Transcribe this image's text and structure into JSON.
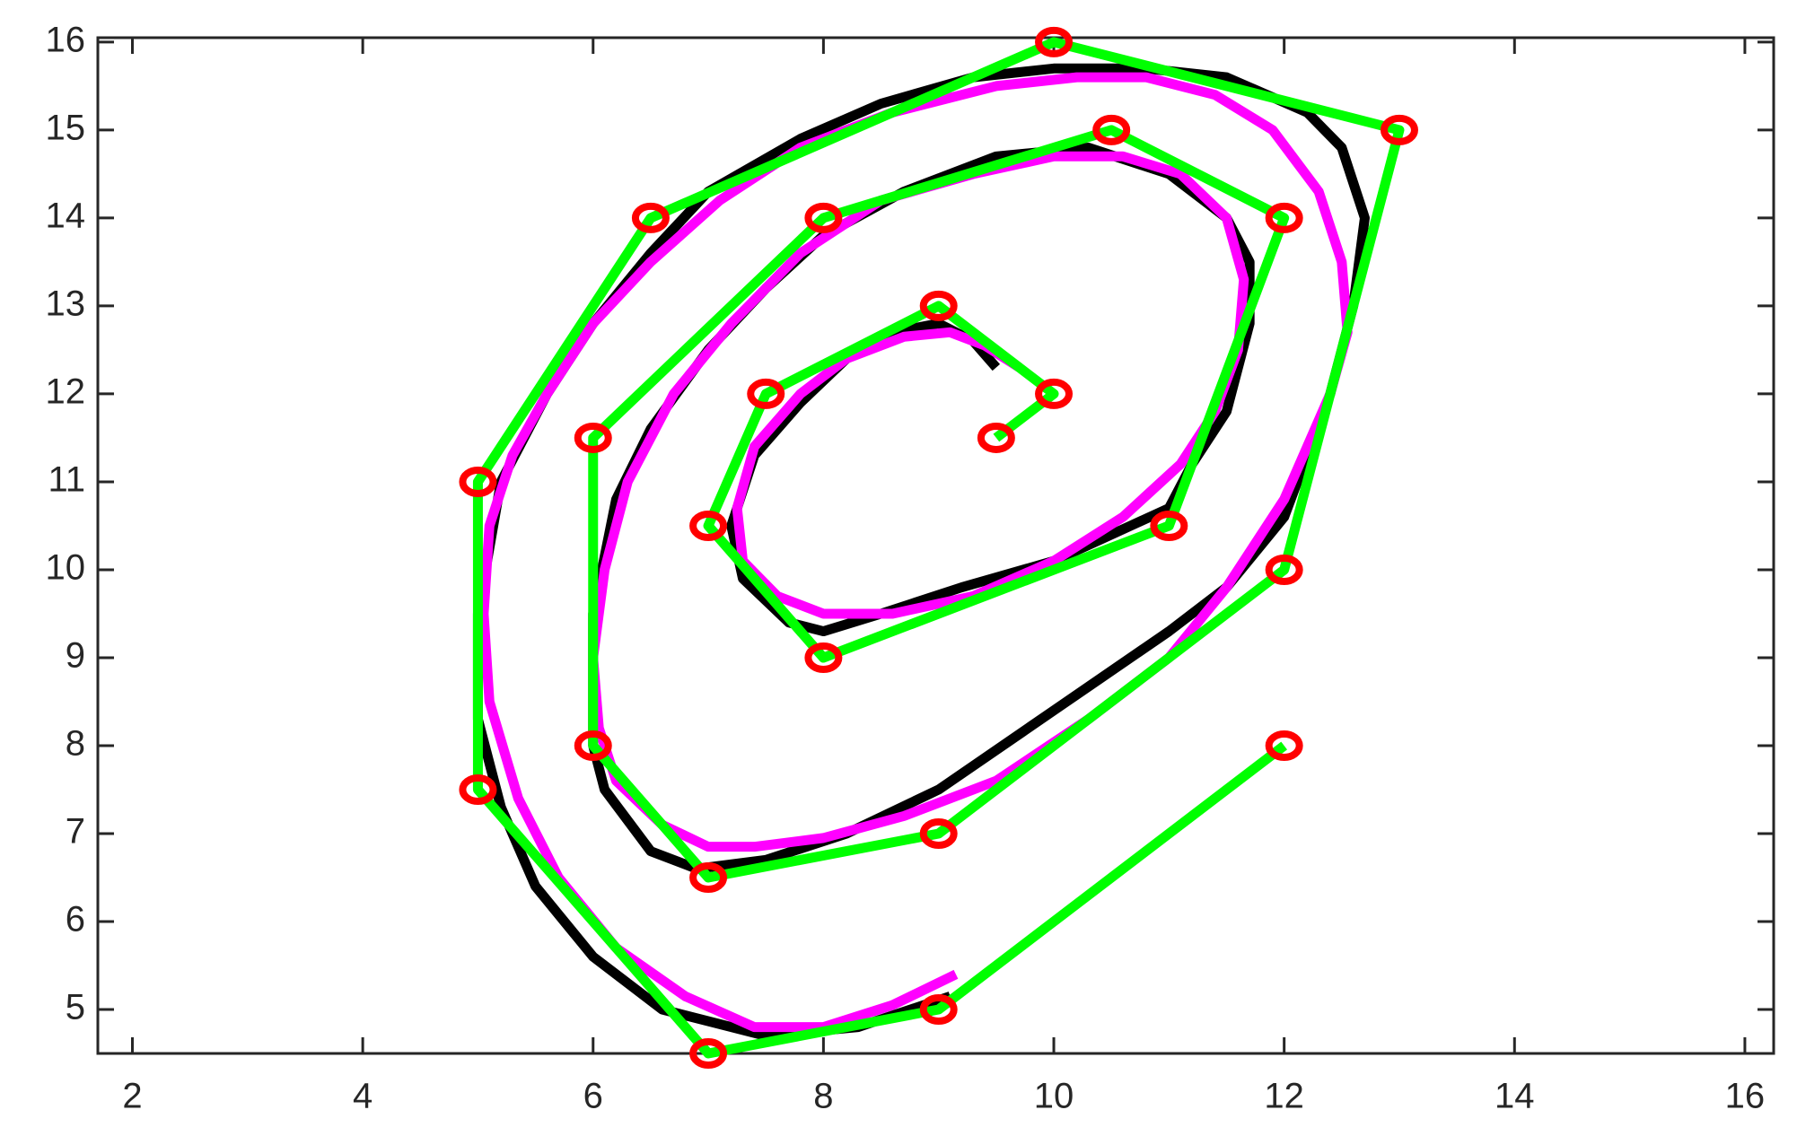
{
  "chart_data": {
    "type": "line",
    "xlim": [
      1.7,
      16.25
    ],
    "ylim": [
      4.5,
      16.05
    ],
    "xticks": [
      2,
      4,
      6,
      8,
      10,
      12,
      14,
      16
    ],
    "yticks": [
      5,
      6,
      7,
      8,
      9,
      10,
      11,
      12,
      13,
      14,
      15,
      16
    ],
    "grid": false,
    "series": [
      {
        "color": "#000000",
        "line_width": 11,
        "x": [
          9.1,
          8.3,
          7.5,
          6.6,
          6.0,
          5.5,
          5.2,
          5.0,
          5.0,
          5.2,
          5.6,
          6.0,
          6.5,
          7.0,
          7.8,
          8.5,
          9.3,
          10.0,
          10.8,
          11.5,
          12.2,
          12.5,
          12.7,
          12.6,
          12.4,
          12.0,
          11.5,
          11.0,
          10.0,
          9.0,
          8.2,
          7.5,
          6.9,
          6.5,
          6.1,
          6.0,
          6.0,
          6.2,
          6.5,
          7.0,
          7.5,
          8.0,
          8.7,
          9.5,
          10.3,
          11.0,
          11.5,
          11.7,
          11.7,
          11.5,
          11.2,
          11.0,
          10.5,
          10.0,
          9.2,
          8.5,
          8.0,
          7.7,
          7.3,
          7.2,
          7.4,
          7.8,
          8.2,
          8.6,
          9.0,
          9.3,
          9.5
        ],
        "y": [
          5.15,
          4.8,
          4.7,
          5.0,
          5.6,
          6.4,
          7.3,
          8.3,
          9.5,
          11.0,
          12.0,
          12.8,
          13.6,
          14.3,
          14.9,
          15.3,
          15.6,
          15.7,
          15.7,
          15.6,
          15.2,
          14.8,
          14.0,
          13.0,
          12.0,
          10.6,
          9.8,
          9.3,
          8.4,
          7.5,
          7.0,
          6.7,
          6.6,
          6.8,
          7.5,
          8.0,
          9.5,
          10.8,
          11.6,
          12.5,
          13.2,
          13.8,
          14.3,
          14.7,
          14.8,
          14.5,
          14.0,
          13.5,
          12.8,
          11.8,
          11.2,
          10.7,
          10.4,
          10.1,
          9.8,
          9.5,
          9.3,
          9.4,
          9.9,
          10.5,
          11.3,
          11.9,
          12.4,
          12.7,
          12.8,
          12.6,
          12.3
        ]
      },
      {
        "color": "#ff00ff",
        "line_width": 11,
        "x": [
          9.15,
          8.6,
          8.0,
          7.4,
          6.8,
          6.2,
          5.7,
          5.35,
          5.1,
          5.05,
          5.1,
          5.3,
          5.6,
          6.0,
          6.5,
          7.1,
          7.8,
          8.6,
          9.5,
          10.2,
          10.8,
          11.4,
          11.9,
          12.3,
          12.5,
          12.55,
          12.4,
          12.0,
          11.5,
          11.0,
          10.3,
          9.5,
          8.7,
          8.0,
          7.4,
          7.0,
          6.6,
          6.2,
          6.05,
          6.0,
          6.1,
          6.3,
          6.7,
          7.2,
          7.8,
          8.5,
          9.3,
          10.0,
          10.6,
          11.1,
          11.5,
          11.65,
          11.6,
          11.4,
          11.1,
          10.6,
          10.0,
          9.3,
          8.6,
          8.0,
          7.6,
          7.3,
          7.25,
          7.4,
          7.8,
          8.2,
          8.7,
          9.1,
          9.4,
          9.7
        ],
        "y": [
          5.4,
          5.05,
          4.8,
          4.8,
          5.15,
          5.7,
          6.5,
          7.4,
          8.5,
          9.5,
          10.5,
          11.3,
          12.0,
          12.8,
          13.5,
          14.2,
          14.8,
          15.2,
          15.5,
          15.6,
          15.6,
          15.4,
          15.0,
          14.3,
          13.5,
          12.7,
          12.0,
          10.8,
          9.8,
          9.0,
          8.3,
          7.6,
          7.2,
          6.95,
          6.85,
          6.85,
          7.1,
          7.6,
          8.2,
          9.0,
          10.0,
          11.0,
          12.0,
          12.8,
          13.6,
          14.2,
          14.5,
          14.7,
          14.7,
          14.5,
          14.0,
          13.3,
          12.5,
          11.8,
          11.2,
          10.6,
          10.1,
          9.7,
          9.5,
          9.5,
          9.7,
          10.1,
          10.7,
          11.4,
          12.0,
          12.4,
          12.65,
          12.7,
          12.55,
          12.3
        ]
      },
      {
        "color": "#00ff00",
        "marker_color": "#ff0000",
        "marker": "circle",
        "line_width": 11,
        "x": [
          12,
          9,
          7,
          5,
          5,
          6.5,
          10,
          13,
          12,
          9,
          7,
          6,
          6,
          8,
          10.5,
          12,
          11,
          8,
          7,
          7.5,
          9,
          10,
          9.5
        ],
        "y": [
          8,
          5,
          4.5,
          7.5,
          11,
          14,
          16,
          15,
          10,
          7,
          6.5,
          8,
          11.5,
          14,
          15,
          14,
          10.5,
          9,
          10.5,
          12,
          13,
          12,
          11.5
        ]
      }
    ]
  }
}
